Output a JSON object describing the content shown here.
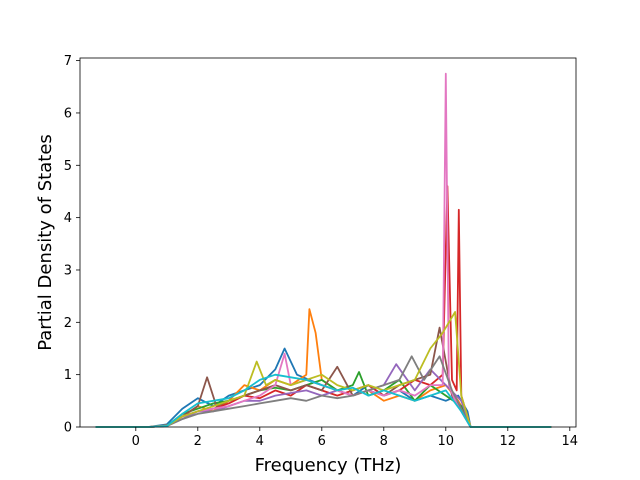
{
  "chart_data": {
    "type": "line",
    "title": "",
    "xlabel": "Frequency (THz)",
    "ylabel": "Partial Density of States",
    "xlim": [
      -1.8,
      14.2
    ],
    "ylim": [
      0,
      7.05
    ],
    "xticks": [
      0,
      2,
      4,
      6,
      8,
      10,
      12,
      14
    ],
    "yticks": [
      0,
      1,
      2,
      3,
      4,
      5,
      6,
      7
    ],
    "grid": false,
    "legend": "none",
    "series_colors": [
      "#1f77b4",
      "#ff7f0e",
      "#2ca02c",
      "#d62728",
      "#9467bd",
      "#8c564b",
      "#e377c2",
      "#7f7f7f",
      "#bcbd22",
      "#17becf"
    ],
    "series": [
      {
        "x": [
          -1.3,
          0.4,
          1.0,
          1.5,
          2.0,
          2.5,
          3.0,
          3.5,
          4.0,
          4.5,
          4.8,
          5.2,
          5.6,
          6.0,
          6.5,
          7.0,
          7.5,
          8.0,
          8.5,
          9.0,
          9.5,
          10.0,
          10.4,
          10.7,
          10.8,
          13.4
        ],
        "y": [
          0,
          0,
          0.05,
          0.35,
          0.55,
          0.4,
          0.6,
          0.7,
          0.8,
          1.1,
          1.5,
          1.0,
          0.9,
          0.8,
          0.7,
          0.6,
          0.8,
          0.6,
          0.7,
          0.5,
          0.6,
          0.5,
          0.6,
          0.3,
          0,
          0
        ]
      },
      {
        "x": [
          -1.3,
          0.4,
          1.0,
          1.5,
          2.0,
          2.5,
          3.0,
          3.5,
          4.0,
          4.5,
          5.0,
          5.5,
          5.6,
          5.8,
          6.0,
          6.5,
          7.0,
          7.5,
          8.0,
          8.5,
          9.0,
          9.5,
          10.0,
          10.4,
          10.7,
          10.8,
          13.4
        ],
        "y": [
          0,
          0,
          0.03,
          0.2,
          0.4,
          0.3,
          0.5,
          0.8,
          0.7,
          0.9,
          0.8,
          1.0,
          2.25,
          1.8,
          0.9,
          0.7,
          0.6,
          0.7,
          0.5,
          0.6,
          0.5,
          0.7,
          0.8,
          0.5,
          0.2,
          0,
          0
        ]
      },
      {
        "x": [
          -1.3,
          0.4,
          1.0,
          1.5,
          2.0,
          2.5,
          3.0,
          3.5,
          4.0,
          4.5,
          5.0,
          5.5,
          6.0,
          6.5,
          7.0,
          7.2,
          7.5,
          8.0,
          8.5,
          9.0,
          9.5,
          10.0,
          10.5,
          10.8,
          13.4
        ],
        "y": [
          0,
          0,
          0.02,
          0.25,
          0.35,
          0.45,
          0.5,
          0.6,
          0.7,
          0.75,
          0.7,
          0.8,
          0.9,
          0.7,
          0.8,
          1.05,
          0.6,
          0.7,
          0.9,
          0.5,
          0.8,
          0.6,
          0.4,
          0,
          0
        ]
      },
      {
        "x": [
          -1.3,
          0.4,
          1.0,
          1.5,
          2.0,
          2.5,
          3.0,
          3.5,
          4.0,
          4.5,
          5.0,
          5.5,
          6.0,
          6.5,
          7.0,
          7.5,
          8.0,
          8.5,
          9.0,
          9.5,
          9.9,
          10.05,
          10.2,
          10.35,
          10.42,
          10.5,
          10.8,
          13.4
        ],
        "y": [
          0,
          0,
          0.02,
          0.2,
          0.3,
          0.35,
          0.45,
          0.6,
          0.55,
          0.7,
          0.6,
          0.8,
          0.7,
          0.6,
          0.7,
          0.8,
          0.6,
          0.7,
          0.9,
          0.8,
          1.0,
          4.6,
          0.9,
          0.7,
          4.15,
          0.6,
          0,
          0
        ]
      },
      {
        "x": [
          -1.3,
          0.4,
          1.0,
          1.5,
          2.0,
          2.5,
          3.0,
          3.5,
          4.0,
          4.5,
          5.0,
          5.5,
          6.0,
          6.5,
          7.0,
          7.5,
          8.0,
          8.4,
          9.0,
          9.5,
          10.0,
          10.5,
          10.8,
          13.4
        ],
        "y": [
          0,
          0,
          0.02,
          0.15,
          0.3,
          0.3,
          0.4,
          0.5,
          0.5,
          0.6,
          0.65,
          0.7,
          0.6,
          0.7,
          0.6,
          0.7,
          0.8,
          1.2,
          0.7,
          1.1,
          0.8,
          0.5,
          0,
          0
        ]
      },
      {
        "x": [
          -1.3,
          0.4,
          1.0,
          1.5,
          2.0,
          2.3,
          2.6,
          3.0,
          3.5,
          4.0,
          4.5,
          5.0,
          5.5,
          6.0,
          6.5,
          7.0,
          7.5,
          8.0,
          8.5,
          9.0,
          9.5,
          9.8,
          10.2,
          10.8,
          13.4
        ],
        "y": [
          0,
          0,
          0.02,
          0.2,
          0.4,
          0.95,
          0.4,
          0.5,
          0.6,
          0.7,
          0.8,
          0.7,
          0.8,
          0.7,
          1.15,
          0.6,
          0.7,
          0.6,
          0.8,
          0.9,
          1.0,
          1.9,
          0.6,
          0,
          0
        ]
      },
      {
        "x": [
          -1.3,
          0.4,
          1.0,
          1.5,
          2.0,
          2.5,
          3.0,
          3.5,
          4.0,
          4.5,
          4.8,
          5.0,
          5.5,
          6.0,
          6.5,
          7.0,
          7.5,
          8.0,
          8.5,
          9.0,
          9.5,
          9.9,
          10.0,
          10.1,
          10.3,
          10.8,
          13.4
        ],
        "y": [
          0,
          0,
          0.02,
          0.2,
          0.3,
          0.35,
          0.4,
          0.5,
          0.6,
          0.8,
          1.4,
          0.8,
          0.9,
          0.8,
          0.7,
          0.6,
          0.7,
          0.6,
          0.7,
          0.6,
          0.8,
          0.8,
          6.75,
          0.8,
          0.5,
          0,
          0
        ]
      },
      {
        "x": [
          -1.3,
          0.4,
          1.0,
          1.5,
          2.0,
          2.5,
          3.0,
          3.5,
          4.0,
          4.5,
          5.0,
          5.5,
          6.0,
          6.5,
          7.0,
          7.5,
          8.0,
          8.5,
          8.9,
          9.3,
          9.8,
          10.2,
          10.8,
          13.4
        ],
        "y": [
          0,
          0,
          0.02,
          0.15,
          0.25,
          0.3,
          0.35,
          0.4,
          0.45,
          0.5,
          0.55,
          0.5,
          0.6,
          0.55,
          0.6,
          0.7,
          0.8,
          0.9,
          1.35,
          0.9,
          1.35,
          0.7,
          0,
          0
        ]
      },
      {
        "x": [
          -1.3,
          0.4,
          1.0,
          1.5,
          2.0,
          2.5,
          3.0,
          3.5,
          3.9,
          4.2,
          4.5,
          5.0,
          5.5,
          6.0,
          6.5,
          7.0,
          7.5,
          8.0,
          8.5,
          9.0,
          9.5,
          9.9,
          10.3,
          10.5,
          10.8,
          13.4
        ],
        "y": [
          0,
          0,
          0.02,
          0.2,
          0.3,
          0.4,
          0.5,
          0.6,
          1.25,
          0.8,
          0.9,
          0.8,
          0.9,
          1.0,
          0.8,
          0.7,
          0.8,
          0.7,
          0.8,
          0.9,
          1.5,
          1.8,
          2.2,
          0.6,
          0,
          0
        ]
      },
      {
        "x": [
          -1.3,
          0.4,
          1.0,
          1.5,
          2.0,
          2.5,
          3.0,
          3.5,
          4.0,
          4.5,
          5.0,
          5.5,
          6.0,
          6.5,
          7.0,
          7.5,
          8.0,
          8.5,
          9.0,
          9.5,
          10.0,
          10.5,
          10.8,
          13.4
        ],
        "y": [
          0,
          0,
          0.02,
          0.25,
          0.45,
          0.5,
          0.55,
          0.7,
          0.9,
          1.0,
          0.95,
          0.9,
          0.8,
          0.7,
          0.75,
          0.6,
          0.7,
          0.6,
          0.5,
          0.6,
          0.7,
          0.3,
          0,
          0
        ]
      }
    ]
  }
}
